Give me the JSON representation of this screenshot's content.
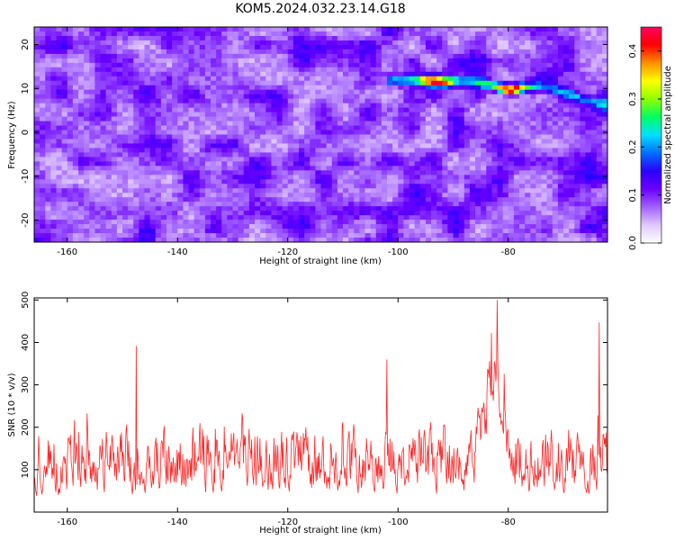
{
  "title": "KOM5.2024.032.23.14.G18",
  "chart_data": [
    {
      "type": "heatmap",
      "xlabel": "Height of straight line (km)",
      "ylabel": "Frequency (Hz)",
      "xlim": [
        -166,
        -62
      ],
      "ylim": [
        -25,
        24
      ],
      "xticks": [
        -160,
        -140,
        -120,
        -100,
        -80
      ],
      "yticks": [
        -20,
        -10,
        0,
        10,
        20
      ],
      "colorbar": {
        "label": "Normalized spectral amplitude",
        "range": [
          0.0,
          0.45
        ],
        "ticks": [
          0.0,
          0.1,
          0.2,
          0.3,
          0.4
        ],
        "colormap": [
          "#ffffff",
          "#e0c8ff",
          "#a060ff",
          "#6a00ff",
          "#2a00ff",
          "#0070ff",
          "#00e0ff",
          "#00ff60",
          "#90ff00",
          "#ffff00",
          "#ff9000",
          "#ff0000",
          "#ff0060"
        ]
      },
      "ridge": {
        "points": [
          [
            -102,
            11.8
          ],
          [
            -97,
            12.0
          ],
          [
            -92,
            11.5
          ],
          [
            -87,
            11.6
          ],
          [
            -84,
            11.0
          ],
          [
            -80,
            9.6
          ],
          [
            -77,
            10.2
          ],
          [
            -72,
            10.0
          ],
          [
            -68,
            8.2
          ],
          [
            -63,
            6.5
          ]
        ],
        "peaks": [
          {
            "x": -93,
            "y": 11.6,
            "amplitude": 0.4
          },
          {
            "x": -80,
            "y": 9.6,
            "amplitude": 0.44
          }
        ]
      }
    },
    {
      "type": "line",
      "xlabel": "Height of straight line (km)",
      "ylabel": "SNR (10 * v/v)",
      "xlim": [
        -166,
        -62
      ],
      "ylim": [
        0,
        505
      ],
      "xticks": [
        -160,
        -140,
        -120,
        -100,
        -80
      ],
      "yticks": [
        100,
        200,
        300,
        400,
        500
      ],
      "series": [
        {
          "color": "#ff0000",
          "peaks": [
            [
              -82,
              500
            ],
            [
              -63.5,
              447
            ],
            [
              -83,
              422
            ],
            [
              -147.5,
              392
            ],
            [
              -102,
              360
            ]
          ],
          "baseline_mean": 120,
          "noise_range": [
            10,
            300
          ]
        }
      ]
    }
  ]
}
